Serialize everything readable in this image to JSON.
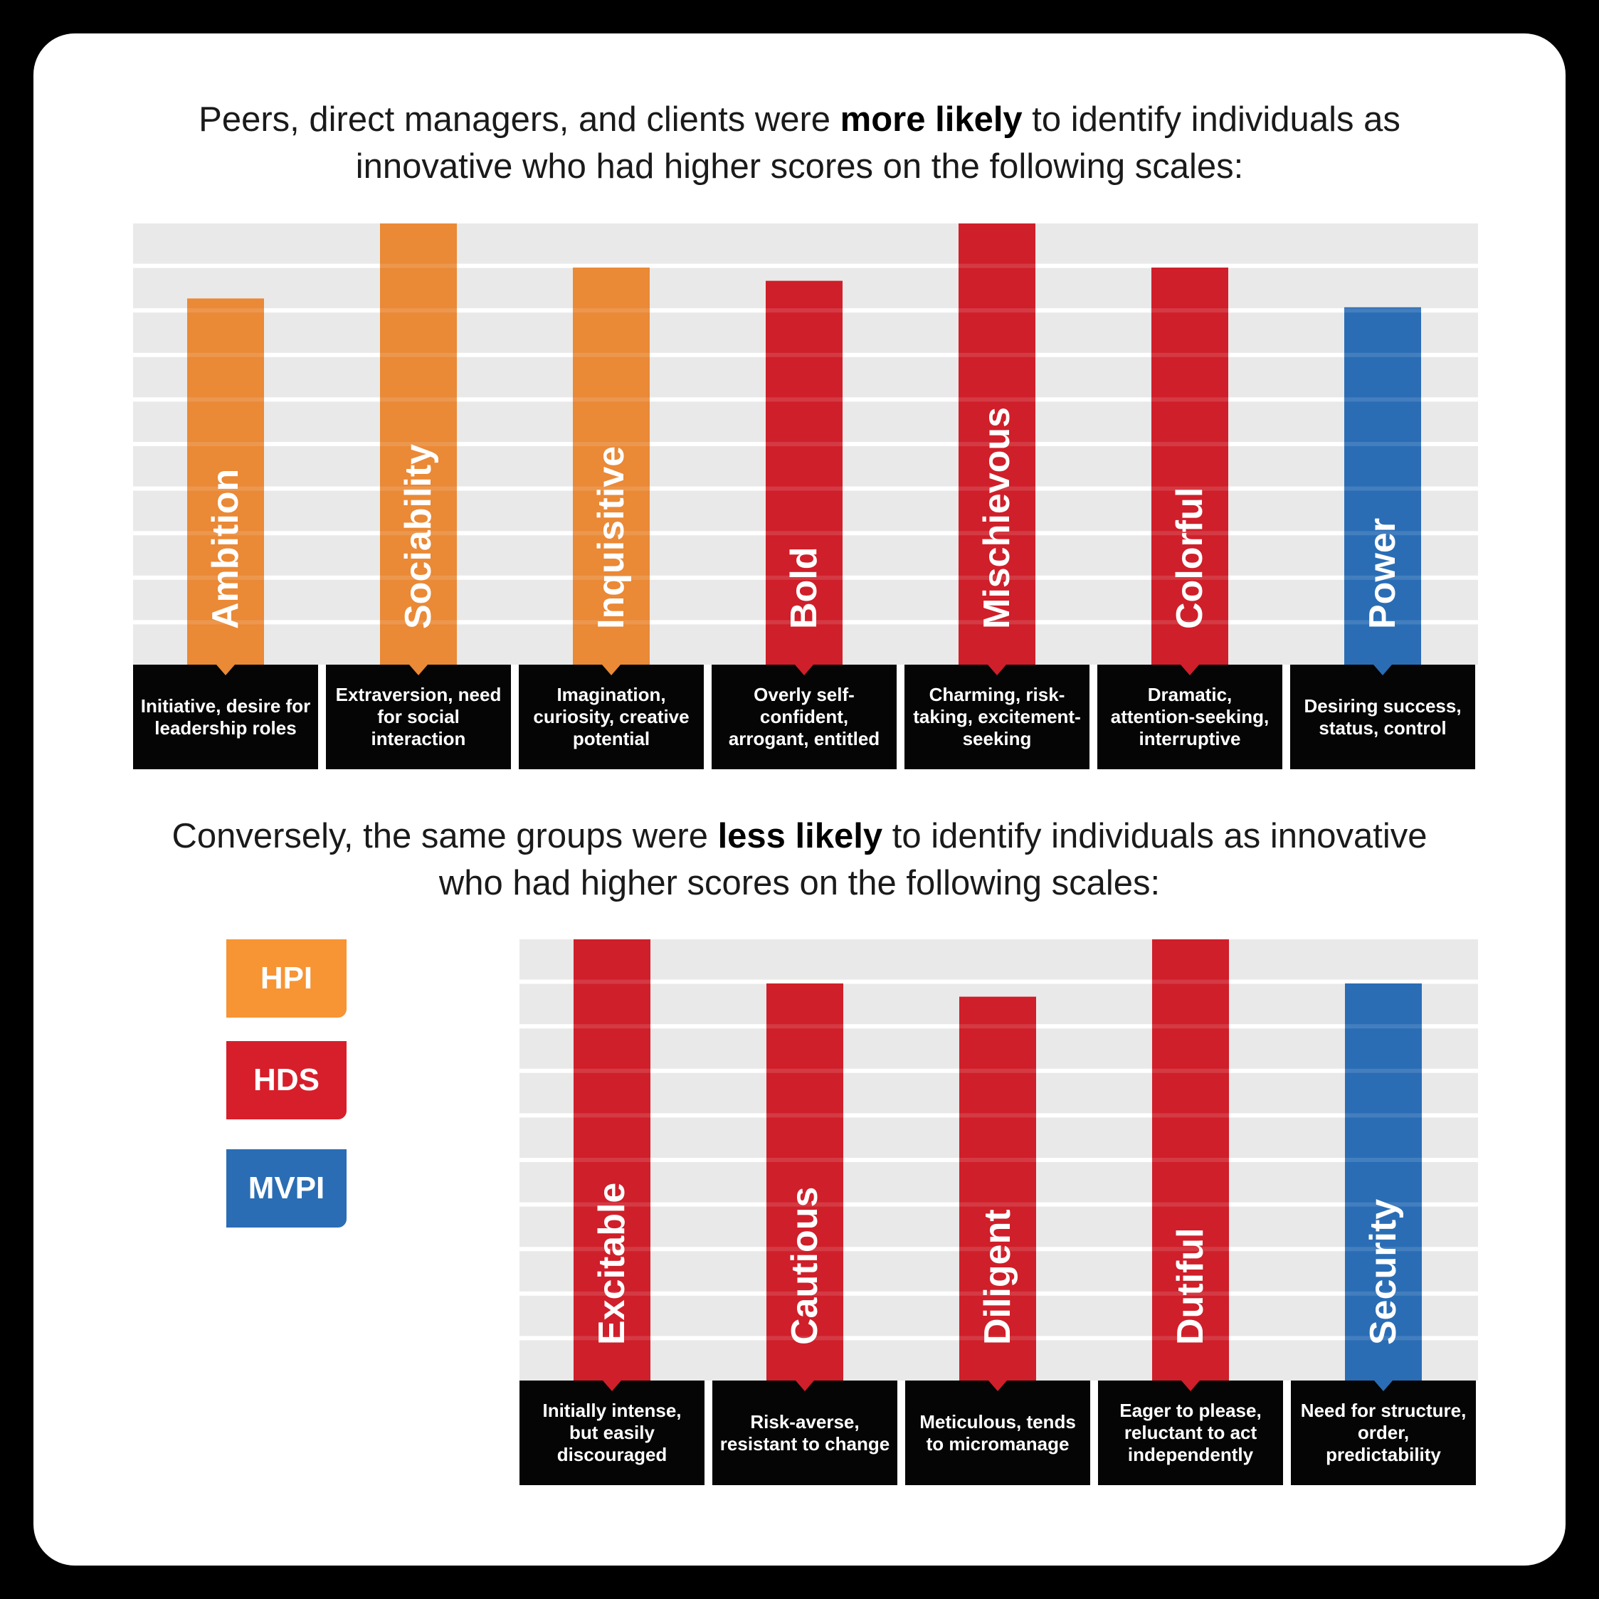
{
  "headings": {
    "top": {
      "before": "Peers, direct managers, and clients were ",
      "bold": "more likely",
      "after": " to identify individuals as innovative who had higher scores on the following scales:"
    },
    "bottom": {
      "before": "Conversely, the same groups were ",
      "bold": "less likely",
      "after": " to identify individuals as innovative who had higher scores on the following scales:"
    }
  },
  "legend": [
    {
      "label": "HPI",
      "color": "#f79433"
    },
    {
      "label": "HDS",
      "color": "#d71f2b"
    },
    {
      "label": "MVPI",
      "color": "#2a6db5"
    }
  ],
  "colors": {
    "HPI": "#ea8936",
    "HDS": "#cf1f2a",
    "MVPI": "#2a6db5",
    "gridband": "#e9e9e9",
    "descbox": "#050505"
  },
  "chart_data": [
    {
      "type": "bar",
      "ylim": [
        0,
        10
      ],
      "grid": true,
      "categories": [
        "Ambition",
        "Sociability",
        "Inquisitive",
        "Bold",
        "Mischievous",
        "Colorful",
        "Power"
      ],
      "values": [
        8.3,
        10.0,
        9.0,
        8.7,
        10.0,
        9.0,
        8.1
      ],
      "groups": [
        "HPI",
        "HPI",
        "HPI",
        "HDS",
        "HDS",
        "HDS",
        "MVPI"
      ],
      "descriptions": [
        "Initiative, desire for leadership roles",
        "Extraversion, need for social interaction",
        "Imagination, curiosity, creative potential",
        "Overly self-confident, arrogant, entitled",
        "Charming, risk-taking, excitement-seeking",
        "Dramatic, attention-seeking, interruptive",
        "Desiring success, status, control"
      ]
    },
    {
      "type": "bar",
      "ylim": [
        0,
        10
      ],
      "grid": true,
      "categories": [
        "Excitable",
        "Cautious",
        "Diligent",
        "Dutiful",
        "Security"
      ],
      "values": [
        10.0,
        9.0,
        8.7,
        10.0,
        9.0
      ],
      "groups": [
        "HDS",
        "HDS",
        "HDS",
        "HDS",
        "MVPI"
      ],
      "descriptions": [
        "Initially intense, but easily discouraged",
        "Risk-averse, resistant to change",
        "Meticulous, tends to micromanage",
        "Eager to please, reluctant to act independently",
        "Need for structure, order, predictability"
      ]
    }
  ]
}
